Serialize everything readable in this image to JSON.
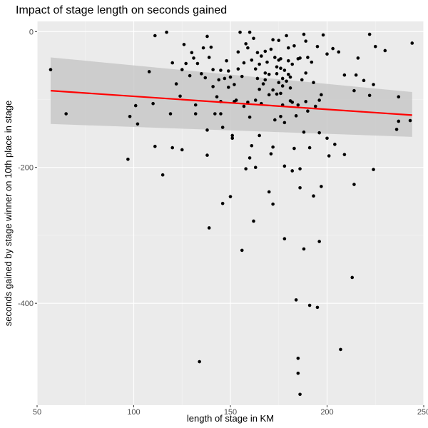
{
  "chart_data": {
    "type": "scatter",
    "title": "Impact of stage length on seconds gained",
    "xlabel": "length of stage in KM",
    "ylabel": "seconds gained by stage winner on 10th place in stage",
    "xlim": [
      50,
      250
    ],
    "ylim": [
      -550,
      15
    ],
    "x_ticks": [
      50,
      100,
      150,
      200,
      250
    ],
    "y_ticks": [
      0,
      -200,
      -400
    ],
    "grid": true,
    "background": "#ebebeb",
    "grid_major_color": "#ffffff",
    "point_color": "#000000",
    "trend_line": {
      "method": "lm",
      "color": "#ff0000",
      "band_color": "#c8c8c8",
      "x": [
        57,
        244
      ],
      "y": [
        -87,
        -123
      ],
      "ci_low": [
        -136,
        -155
      ],
      "ci_high": [
        -38,
        -89
      ]
    },
    "points": [
      [
        57,
        -56
      ],
      [
        65,
        -121
      ],
      [
        97,
        -188
      ],
      [
        98,
        -125
      ],
      [
        101,
        -109
      ],
      [
        102,
        -136
      ],
      [
        108,
        -59
      ],
      [
        110,
        -106
      ],
      [
        111,
        -169
      ],
      [
        111,
        -6
      ],
      [
        115,
        -211
      ],
      [
        117,
        -1
      ],
      [
        119,
        -121
      ],
      [
        120,
        -46
      ],
      [
        120,
        -171
      ],
      [
        122,
        -77
      ],
      [
        124,
        -95
      ],
      [
        125,
        -56
      ],
      [
        125,
        -174
      ],
      [
        126,
        -19
      ],
      [
        127,
        -47
      ],
      [
        129,
        -65
      ],
      [
        130,
        -31
      ],
      [
        131,
        -39
      ],
      [
        132,
        -121
      ],
      [
        132,
        -108
      ],
      [
        133,
        -47
      ],
      [
        134,
        -486
      ],
      [
        135,
        -62
      ],
      [
        136,
        -24
      ],
      [
        137,
        -68
      ],
      [
        138,
        -7
      ],
      [
        138,
        -145
      ],
      [
        138,
        -182
      ],
      [
        139,
        -289
      ],
      [
        139,
        -38
      ],
      [
        140,
        -23
      ],
      [
        141,
        -56
      ],
      [
        141,
        -81
      ],
      [
        142,
        -121
      ],
      [
        143,
        -96
      ],
      [
        144,
        -71
      ],
      [
        145,
        -57
      ],
      [
        145,
        -103
      ],
      [
        145,
        -121
      ],
      [
        146,
        -253
      ],
      [
        146,
        -141
      ],
      [
        147,
        -69
      ],
      [
        148,
        -43
      ],
      [
        149,
        -58
      ],
      [
        149,
        -82
      ],
      [
        150,
        -243
      ],
      [
        151,
        -153
      ],
      [
        151,
        -157
      ],
      [
        152,
        -103
      ],
      [
        152,
        -78
      ],
      [
        153,
        -101
      ],
      [
        154,
        -55
      ],
      [
        154,
        -30
      ],
      [
        155,
        -1
      ],
      [
        156,
        -322
      ],
      [
        156,
        -66
      ],
      [
        157,
        -46
      ],
      [
        157,
        -110
      ],
      [
        158,
        -202
      ],
      [
        158,
        -18
      ],
      [
        159,
        -24
      ],
      [
        159,
        -104
      ],
      [
        160,
        -186
      ],
      [
        160,
        -1
      ],
      [
        160,
        -126
      ],
      [
        161,
        -42
      ],
      [
        161,
        -168
      ],
      [
        162,
        -279
      ],
      [
        162,
        -10
      ],
      [
        163,
        -55
      ],
      [
        163,
        -101
      ],
      [
        163,
        -200
      ],
      [
        164,
        -69
      ],
      [
        164,
        -31
      ],
      [
        165,
        -48
      ],
      [
        165,
        -85
      ],
      [
        165,
        -153
      ],
      [
        166,
        -36
      ],
      [
        166,
        -106
      ],
      [
        167,
        -77
      ],
      [
        168,
        -71
      ],
      [
        168,
        -29
      ],
      [
        169,
        -45
      ],
      [
        170,
        -93
      ],
      [
        170,
        -63
      ],
      [
        170,
        -236
      ],
      [
        171,
        -180
      ],
      [
        171,
        -26
      ],
      [
        172,
        -86
      ],
      [
        172,
        -170
      ],
      [
        172,
        -254
      ],
      [
        172,
        -12
      ],
      [
        173,
        -38
      ],
      [
        173,
        -130
      ],
      [
        174,
        -52
      ],
      [
        174,
        -92
      ],
      [
        174,
        -62
      ],
      [
        175,
        -75
      ],
      [
        175,
        -13
      ],
      [
        175,
        -42
      ],
      [
        176,
        -40
      ],
      [
        176,
        -91
      ],
      [
        176,
        -125
      ],
      [
        176,
        -54
      ],
      [
        177,
        -69
      ],
      [
        177,
        -80
      ],
      [
        177,
        -108
      ],
      [
        178,
        -57
      ],
      [
        178,
        -198
      ],
      [
        178,
        -305
      ],
      [
        178,
        -134
      ],
      [
        179,
        -6
      ],
      [
        179,
        -73
      ],
      [
        180,
        -63
      ],
      [
        180,
        -24
      ],
      [
        180,
        -43
      ],
      [
        181,
        -102
      ],
      [
        181,
        -67
      ],
      [
        181,
        -83
      ],
      [
        182,
        -104
      ],
      [
        182,
        -48
      ],
      [
        182,
        -205
      ],
      [
        183,
        -21
      ],
      [
        183,
        -172
      ],
      [
        184,
        -395
      ],
      [
        184,
        -124
      ],
      [
        185,
        -40
      ],
      [
        185,
        -503
      ],
      [
        185,
        -481
      ],
      [
        185,
        -108
      ],
      [
        186,
        -534
      ],
      [
        186,
        -230
      ],
      [
        186,
        -39
      ],
      [
        186,
        -202
      ],
      [
        187,
        -71
      ],
      [
        188,
        -148
      ],
      [
        188,
        -4
      ],
      [
        188,
        -320
      ],
      [
        189,
        -61
      ],
      [
        189,
        -103
      ],
      [
        190,
        -38
      ],
      [
        190,
        -117
      ],
      [
        191,
        -403
      ],
      [
        191,
        -171
      ],
      [
        192,
        -45
      ],
      [
        193,
        -75
      ],
      [
        193,
        -242
      ],
      [
        194,
        -110
      ],
      [
        195,
        -406
      ],
      [
        195,
        -22
      ],
      [
        196,
        -101
      ],
      [
        196,
        -149
      ],
      [
        196,
        -309
      ],
      [
        197,
        -228
      ],
      [
        197,
        -93
      ],
      [
        198,
        -5
      ],
      [
        200,
        -33
      ],
      [
        200,
        -157
      ],
      [
        201,
        -183
      ],
      [
        203,
        -25
      ],
      [
        204,
        -166
      ],
      [
        207,
        -468
      ],
      [
        209,
        -181
      ],
      [
        209,
        -64
      ],
      [
        213,
        -362
      ],
      [
        214,
        -225
      ],
      [
        215,
        -64
      ],
      [
        216,
        -39
      ],
      [
        219,
        -72
      ],
      [
        222,
        -94
      ],
      [
        222,
        -4
      ],
      [
        224,
        -203
      ],
      [
        224,
        -78
      ],
      [
        225,
        -22
      ],
      [
        230,
        -28
      ],
      [
        236,
        -144
      ],
      [
        237,
        -96
      ],
      [
        237,
        -132
      ],
      [
        243,
        -131
      ],
      [
        244,
        -17
      ],
      [
        214,
        -87
      ],
      [
        206,
        -30
      ],
      [
        189,
        -14
      ],
      [
        168,
        -61
      ],
      [
        150,
        -67
      ]
    ]
  }
}
